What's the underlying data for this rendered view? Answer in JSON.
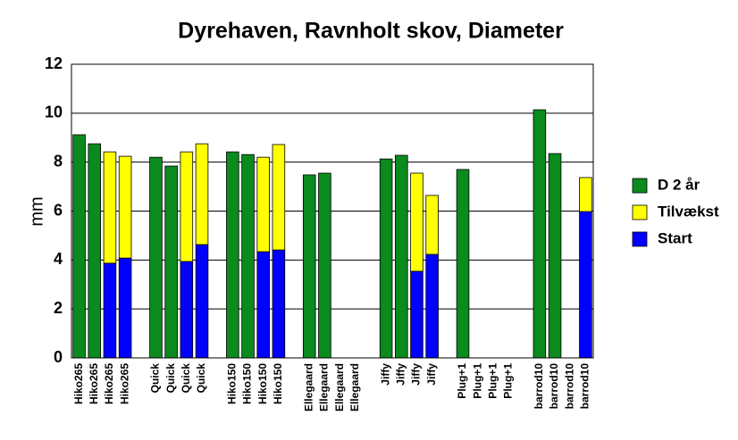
{
  "chart_data": {
    "type": "stacked_bar",
    "title": "Dyrehaven, Ravnholt skov, Diameter",
    "y_label": "mm",
    "categories": [
      "Hiko265",
      "Hiko265",
      "Hiko265",
      "Hiko265",
      null,
      "Quick",
      "Quick",
      "Quick",
      "Quick",
      null,
      "Hiko150",
      "Hiko150",
      "Hiko150",
      "Hiko150",
      null,
      "Ellegaard",
      "Ellegaard",
      "Ellegaard",
      "Ellegaard",
      null,
      "Jiffy",
      "Jiffy",
      "Jiffy",
      "Jiffy",
      null,
      "Plug+1",
      "Plug+1",
      "Plug+1",
      "Plug+1",
      null,
      "barrod10",
      "barrod10",
      "barrod10",
      "barrod10"
    ],
    "series": [
      {
        "name": "D 2 år",
        "color": "#0b8a1e",
        "values": [
          9.12,
          8.75,
          null,
          null,
          null,
          8.2,
          7.84,
          null,
          null,
          null,
          8.42,
          8.31,
          null,
          null,
          null,
          7.48,
          7.55,
          null,
          null,
          null,
          8.13,
          8.28,
          null,
          null,
          null,
          7.7,
          null,
          null,
          null,
          null,
          10.14,
          8.35,
          null,
          null
        ]
      },
      {
        "name": "Tilvækst",
        "color": "#ffff00",
        "values": [
          null,
          null,
          4.55,
          4.16,
          null,
          null,
          null,
          4.48,
          4.12,
          null,
          null,
          null,
          3.86,
          4.31,
          null,
          null,
          null,
          null,
          null,
          null,
          null,
          null,
          4.01,
          2.41,
          null,
          null,
          null,
          null,
          null,
          null,
          null,
          null,
          null,
          1.39
        ]
      },
      {
        "name": "Start",
        "color": "#0000ff",
        "values": [
          null,
          null,
          3.87,
          4.08,
          null,
          null,
          null,
          3.94,
          4.63,
          null,
          null,
          null,
          4.34,
          4.41,
          null,
          null,
          null,
          null,
          null,
          null,
          null,
          null,
          3.54,
          4.23,
          null,
          null,
          null,
          null,
          null,
          null,
          null,
          null,
          null,
          5.98
        ]
      }
    ],
    "ylim": [
      0,
      12
    ],
    "yticks": [
      0,
      2,
      4,
      6,
      8,
      10,
      12
    ],
    "grid": true,
    "legend": "right"
  }
}
